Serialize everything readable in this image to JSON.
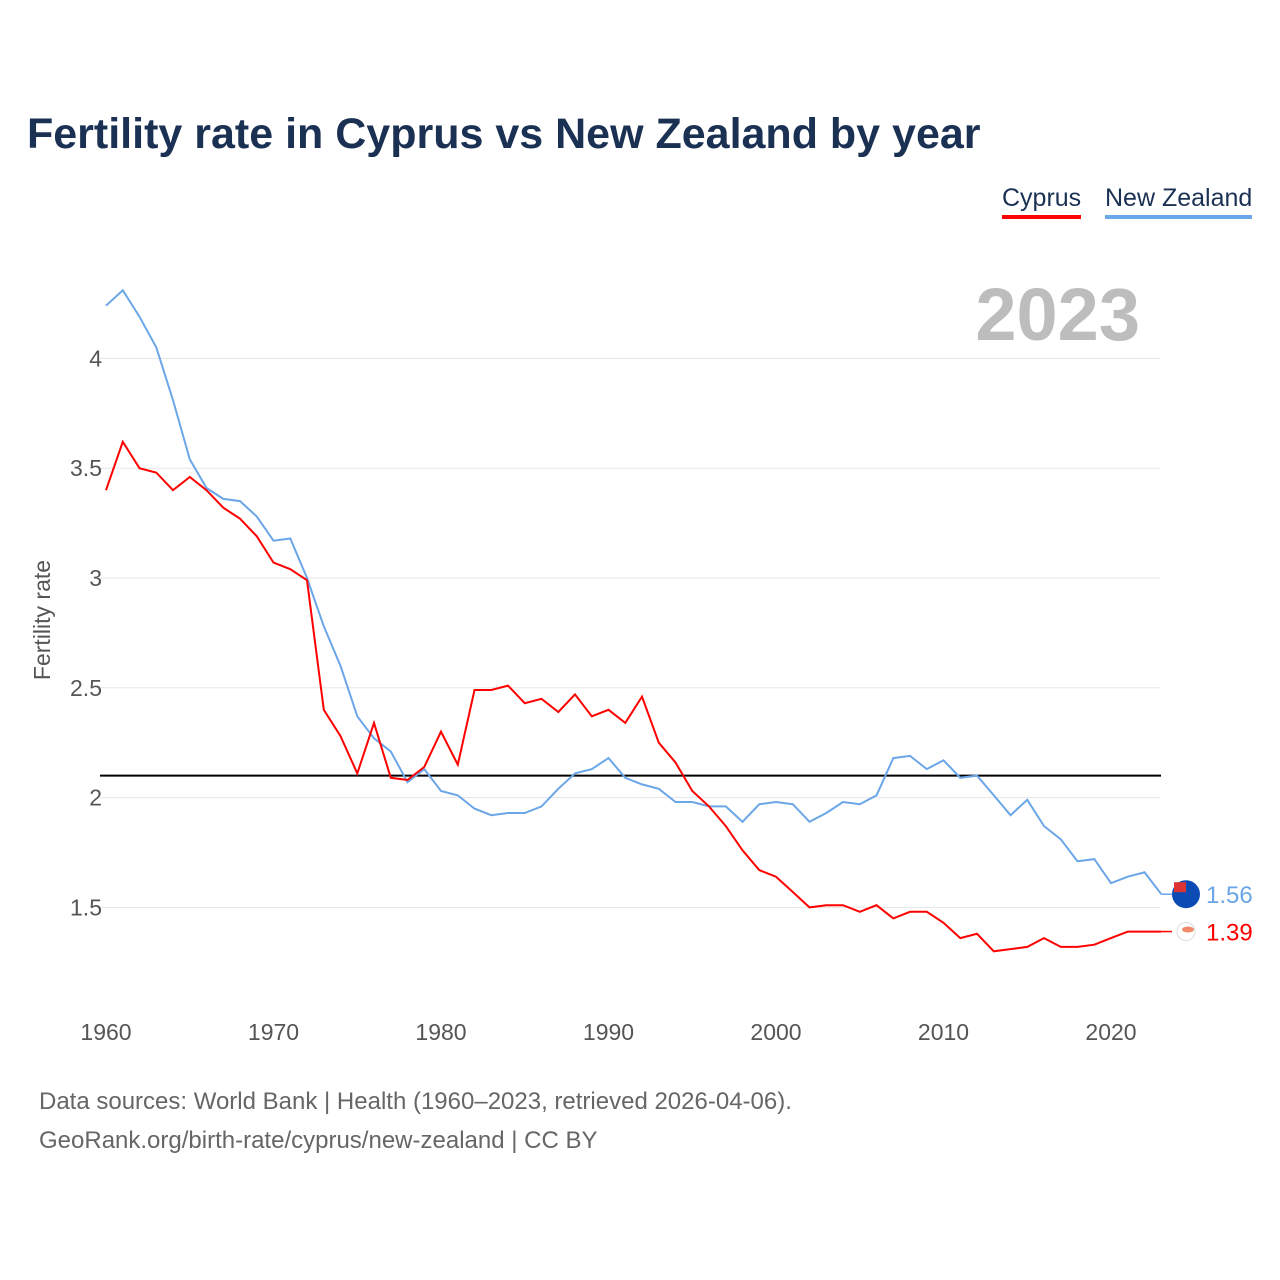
{
  "colors": {
    "cyprus": "#ff0000",
    "new_zealand": "#6aa6e8",
    "reference": "#000000"
  },
  "footer": {
    "line1": "Data sources: World Bank | Health (1960–2023, retrieved 2026-04-06).",
    "line2": "GeoRank.org/birth-rate/cyprus/new-zealand | CC BY"
  },
  "chart_data": {
    "type": "line",
    "title": "Fertility rate in Cyprus vs New Zealand by year",
    "xlabel": "",
    "ylabel": "Fertility rate",
    "year_label": "2023",
    "xlim": [
      1960,
      2023
    ],
    "ylim": [
      1.1,
      4.35
    ],
    "x_ticks": [
      1960,
      1970,
      1980,
      1990,
      2000,
      2010,
      2020
    ],
    "y_ticks": [
      1.5,
      2,
      2.5,
      3,
      3.5,
      4
    ],
    "y_tick_labels": [
      "1.5",
      "2",
      "2.5",
      "3",
      "3.5",
      "4"
    ],
    "x_tick_labels": [
      "1960",
      "1970",
      "1980",
      "1990",
      "2000",
      "2010",
      "2020"
    ],
    "grid": true,
    "legend_position": "top-right",
    "reference_line": 2.1,
    "x": [
      1960,
      1961,
      1962,
      1963,
      1964,
      1965,
      1966,
      1967,
      1968,
      1969,
      1970,
      1971,
      1972,
      1973,
      1974,
      1975,
      1976,
      1977,
      1978,
      1979,
      1980,
      1981,
      1982,
      1983,
      1984,
      1985,
      1986,
      1987,
      1988,
      1989,
      1990,
      1991,
      1992,
      1993,
      1994,
      1995,
      1996,
      1997,
      1998,
      1999,
      2000,
      2001,
      2002,
      2003,
      2004,
      2005,
      2006,
      2007,
      2008,
      2009,
      2010,
      2011,
      2012,
      2013,
      2014,
      2015,
      2016,
      2017,
      2018,
      2019,
      2020,
      2021,
      2022,
      2023
    ],
    "series": [
      {
        "name": "Cyprus",
        "end_label": "1.39",
        "values": [
          3.4,
          3.62,
          3.5,
          3.48,
          3.4,
          3.46,
          3.4,
          3.32,
          3.27,
          3.19,
          3.07,
          3.04,
          2.99,
          2.4,
          2.28,
          2.11,
          2.34,
          2.09,
          2.08,
          2.14,
          2.3,
          2.15,
          2.49,
          2.49,
          2.51,
          2.43,
          2.45,
          2.39,
          2.47,
          2.37,
          2.4,
          2.34,
          2.46,
          2.25,
          2.16,
          2.03,
          1.96,
          1.87,
          1.76,
          1.67,
          1.64,
          1.57,
          1.5,
          1.51,
          1.51,
          1.48,
          1.51,
          1.45,
          1.48,
          1.48,
          1.43,
          1.36,
          1.38,
          1.3,
          1.31,
          1.32,
          1.36,
          1.32,
          1.32,
          1.33,
          1.36,
          1.39,
          1.39,
          1.39
        ]
      },
      {
        "name": "New Zealand",
        "end_label": "1.56",
        "values": [
          4.24,
          4.31,
          4.19,
          4.05,
          3.81,
          3.54,
          3.41,
          3.36,
          3.35,
          3.28,
          3.17,
          3.18,
          3.0,
          2.78,
          2.6,
          2.37,
          2.27,
          2.21,
          2.07,
          2.13,
          2.03,
          2.01,
          1.95,
          1.92,
          1.93,
          1.93,
          1.96,
          2.04,
          2.11,
          2.13,
          2.18,
          2.09,
          2.06,
          2.04,
          1.98,
          1.98,
          1.96,
          1.96,
          1.89,
          1.97,
          1.98,
          1.97,
          1.89,
          1.93,
          1.98,
          1.97,
          2.01,
          2.18,
          2.19,
          2.13,
          2.17,
          2.09,
          2.1,
          2.01,
          1.92,
          1.99,
          1.87,
          1.81,
          1.71,
          1.72,
          1.61,
          1.64,
          1.66,
          1.56
        ]
      }
    ]
  }
}
